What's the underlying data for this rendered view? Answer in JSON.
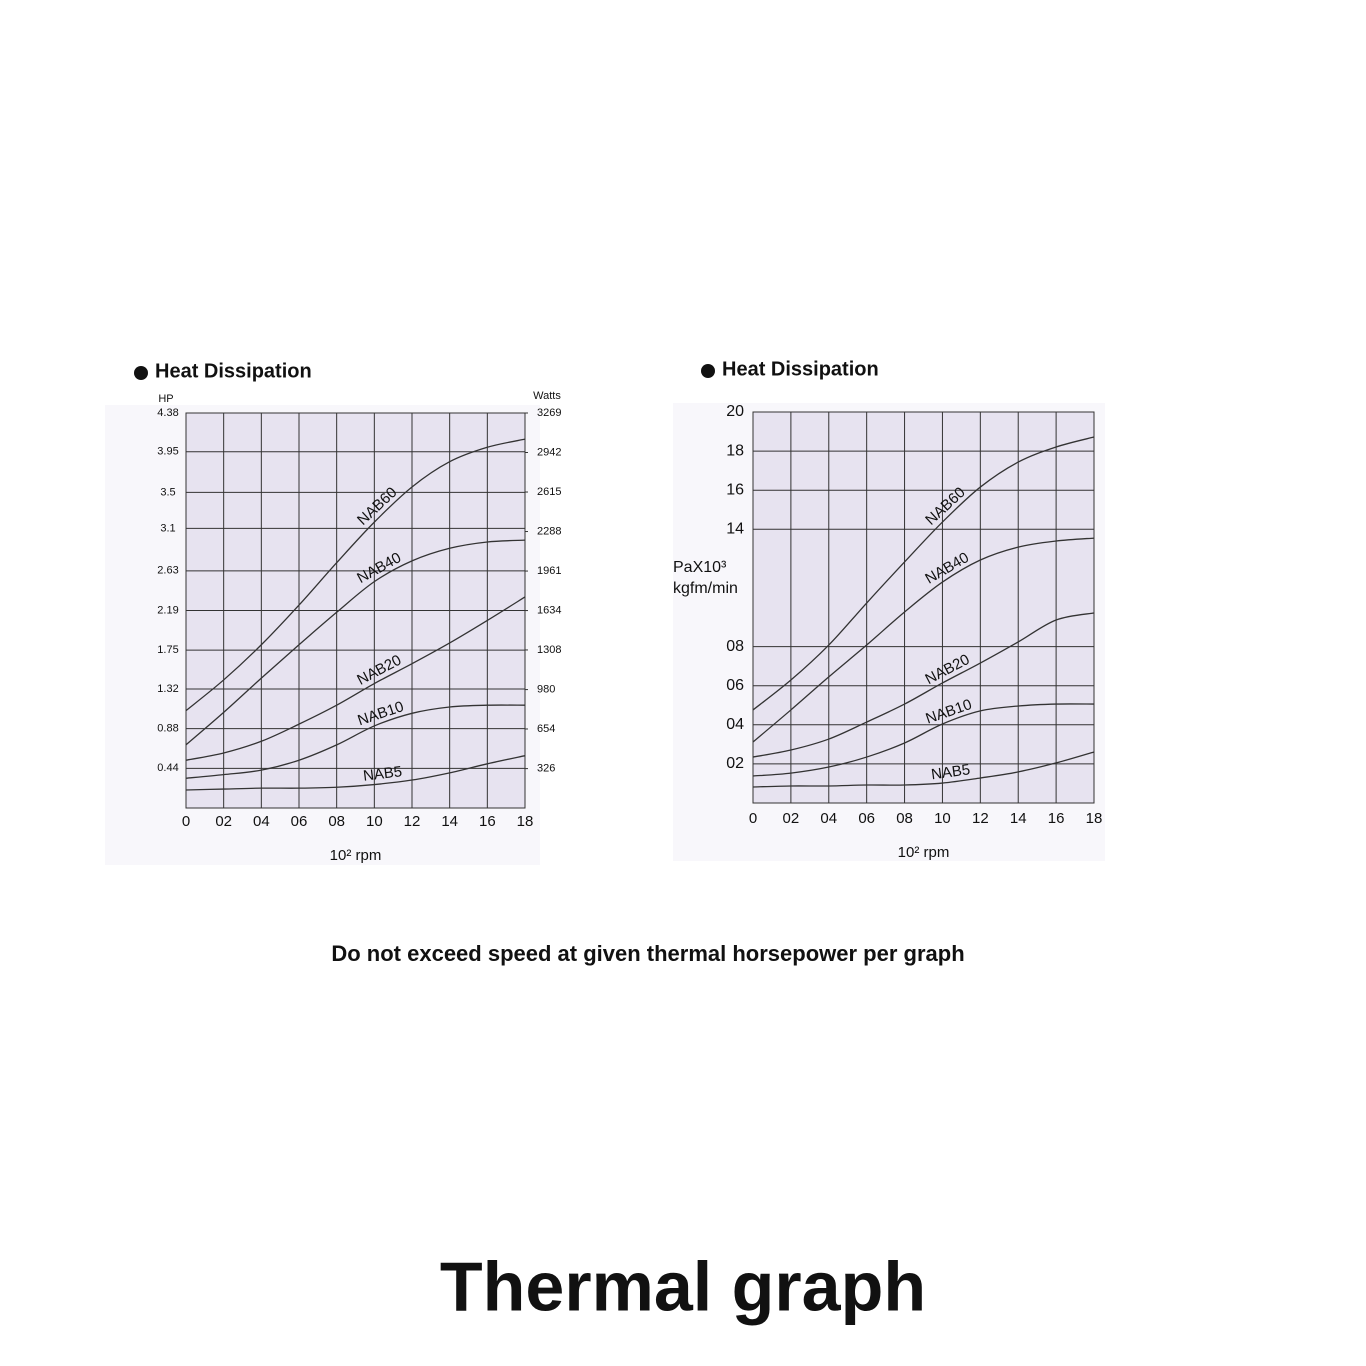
{
  "chart_data": [
    {
      "type": "line",
      "title": "Heat Dissipation",
      "ylabel": "HP",
      "y2label": "Watts",
      "xlabel": "10² rpm",
      "x": [
        0,
        2,
        4,
        6,
        8,
        10,
        12,
        14,
        16,
        18
      ],
      "xlim": [
        0,
        18
      ],
      "xticks": [
        0,
        {
          "value": 2,
          "label": "02"
        },
        {
          "value": 4,
          "label": "04"
        },
        {
          "value": 6,
          "label": "06"
        },
        {
          "value": 8,
          "label": "08"
        },
        10,
        12,
        14,
        16,
        18
      ],
      "ylim": [
        0,
        4.38
      ],
      "yticks": [
        0.44,
        0.88,
        1.32,
        1.75,
        2.19,
        2.63,
        3.1,
        3.5,
        3.95,
        4.38
      ],
      "y2lim": [
        0,
        3269
      ],
      "y2ticks": [
        326,
        654,
        980,
        1308,
        1634,
        1961,
        2288,
        2615,
        2942,
        3269
      ],
      "grid": true,
      "series": [
        {
          "name": "NAB60",
          "color": "#333333",
          "values": [
            1.08,
            1.42,
            1.81,
            2.25,
            2.72,
            3.17,
            3.56,
            3.84,
            4.0,
            4.09
          ]
        },
        {
          "name": "NAB40",
          "color": "#333333",
          "values": [
            0.7,
            1.06,
            1.44,
            1.81,
            2.17,
            2.51,
            2.74,
            2.88,
            2.95,
            2.97
          ]
        },
        {
          "name": "NAB20",
          "color": "#333333",
          "values": [
            0.53,
            0.61,
            0.74,
            0.93,
            1.14,
            1.38,
            1.6,
            1.83,
            2.08,
            2.34
          ]
        },
        {
          "name": "NAB10",
          "color": "#333333",
          "values": [
            0.33,
            0.37,
            0.42,
            0.53,
            0.7,
            0.91,
            1.05,
            1.12,
            1.14,
            1.14
          ]
        },
        {
          "name": "NAB5",
          "color": "#333333",
          "values": [
            0.2,
            0.21,
            0.22,
            0.22,
            0.23,
            0.26,
            0.31,
            0.39,
            0.49,
            0.58
          ]
        }
      ]
    },
    {
      "type": "line",
      "title": "Heat Dissipation",
      "ylabel": [
        "PaX10³",
        "kgfm/min"
      ],
      "xlabel": "10² rpm",
      "x": [
        0,
        2,
        4,
        6,
        8,
        10,
        12,
        14,
        16,
        18
      ],
      "xlim": [
        0,
        18
      ],
      "xticks": [
        0,
        {
          "value": 2,
          "label": "02"
        },
        {
          "value": 4,
          "label": "04"
        },
        {
          "value": 6,
          "label": "06"
        },
        {
          "value": 8,
          "label": "08"
        },
        10,
        12,
        14,
        16,
        18
      ],
      "ylim": [
        0,
        20
      ],
      "yticks": [
        {
          "value": 2,
          "label": "02"
        },
        {
          "value": 4,
          "label": "04"
        },
        {
          "value": 6,
          "label": "06"
        },
        {
          "value": 8,
          "label": "08"
        },
        14,
        16,
        18,
        20
      ],
      "grid": true,
      "series": [
        {
          "name": "NAB60",
          "color": "#333333",
          "values": [
            4.76,
            6.29,
            8.08,
            10.23,
            12.33,
            14.37,
            16.16,
            17.44,
            18.21,
            18.72
          ]
        },
        {
          "name": "NAB40",
          "color": "#333333",
          "values": [
            3.12,
            4.76,
            6.45,
            8.08,
            9.77,
            11.3,
            12.43,
            13.09,
            13.4,
            13.55
          ]
        },
        {
          "name": "NAB20",
          "color": "#333333",
          "values": [
            2.35,
            2.71,
            3.27,
            4.14,
            5.06,
            6.14,
            7.16,
            8.24,
            9.36,
            9.72
          ]
        },
        {
          "name": "NAB10",
          "color": "#333333",
          "values": [
            1.38,
            1.53,
            1.84,
            2.35,
            3.07,
            4.04,
            4.71,
            4.96,
            5.06,
            5.06
          ]
        },
        {
          "name": "NAB5",
          "color": "#333333",
          "values": [
            0.82,
            0.87,
            0.87,
            0.92,
            0.92,
            1.02,
            1.28,
            1.59,
            2.05,
            2.61
          ]
        }
      ]
    }
  ],
  "caption": "Do not exceed speed at given thermal horsepower per graph",
  "heading": "Thermal graph"
}
